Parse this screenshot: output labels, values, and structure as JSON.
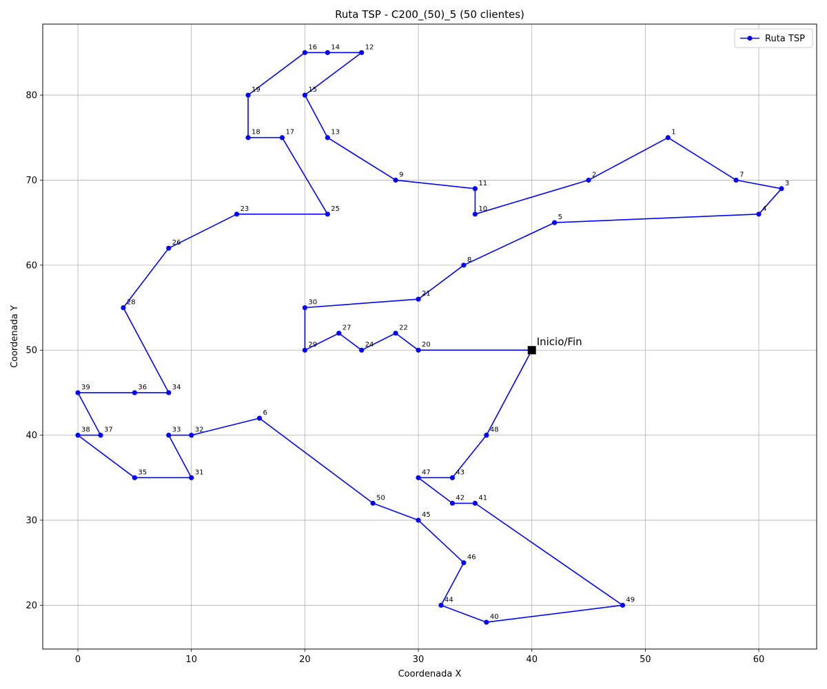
{
  "chart_data": {
    "type": "line",
    "title": "Ruta TSP - C200_(50)_5 (50 clientes)",
    "xlabel": "Coordenada X",
    "ylabel": "Coordenada Y",
    "xlim": [
      -3.1,
      65.1
    ],
    "ylim": [
      14.85,
      88.35
    ],
    "xticks": [
      0,
      10,
      20,
      30,
      40,
      50,
      60
    ],
    "yticks": [
      20,
      30,
      40,
      50,
      60,
      70,
      80
    ],
    "grid": true,
    "legend": {
      "position": "top-right",
      "entries": [
        "Ruta TSP"
      ]
    },
    "series": [
      {
        "name": "Ruta TSP",
        "color": "#0000ff",
        "marker": "circle",
        "route": [
          0,
          20,
          22,
          24,
          27,
          29,
          30,
          21,
          8,
          5,
          4,
          3,
          7,
          1,
          2,
          10,
          11,
          9,
          13,
          15,
          12,
          14,
          16,
          19,
          18,
          17,
          25,
          23,
          26,
          28,
          34,
          36,
          39,
          37,
          38,
          35,
          31,
          33,
          32,
          6,
          50,
          45,
          46,
          44,
          40,
          49,
          41,
          42,
          47,
          43,
          48,
          0
        ]
      }
    ],
    "depot": {
      "id": 0,
      "x": 40,
      "y": 50,
      "label": "Inicio/Fin",
      "color": "#000000",
      "marker": "square"
    },
    "points": [
      {
        "id": 1,
        "x": 52,
        "y": 75
      },
      {
        "id": 2,
        "x": 45,
        "y": 70
      },
      {
        "id": 3,
        "x": 62,
        "y": 69
      },
      {
        "id": 4,
        "x": 60,
        "y": 66
      },
      {
        "id": 5,
        "x": 42,
        "y": 65
      },
      {
        "id": 6,
        "x": 16,
        "y": 42
      },
      {
        "id": 7,
        "x": 58,
        "y": 70
      },
      {
        "id": 8,
        "x": 34,
        "y": 60
      },
      {
        "id": 9,
        "x": 28,
        "y": 70
      },
      {
        "id": 10,
        "x": 35,
        "y": 66
      },
      {
        "id": 11,
        "x": 35,
        "y": 69
      },
      {
        "id": 12,
        "x": 25,
        "y": 85
      },
      {
        "id": 13,
        "x": 22,
        "y": 75
      },
      {
        "id": 14,
        "x": 22,
        "y": 85
      },
      {
        "id": 15,
        "x": 20,
        "y": 80
      },
      {
        "id": 16,
        "x": 20,
        "y": 85
      },
      {
        "id": 17,
        "x": 18,
        "y": 75
      },
      {
        "id": 18,
        "x": 15,
        "y": 75
      },
      {
        "id": 19,
        "x": 15,
        "y": 80
      },
      {
        "id": 20,
        "x": 30,
        "y": 50
      },
      {
        "id": 21,
        "x": 30,
        "y": 56
      },
      {
        "id": 22,
        "x": 28,
        "y": 52
      },
      {
        "id": 23,
        "x": 14,
        "y": 66
      },
      {
        "id": 24,
        "x": 25,
        "y": 50
      },
      {
        "id": 25,
        "x": 22,
        "y": 66
      },
      {
        "id": 26,
        "x": 8,
        "y": 62
      },
      {
        "id": 27,
        "x": 23,
        "y": 52
      },
      {
        "id": 28,
        "x": 4,
        "y": 55
      },
      {
        "id": 29,
        "x": 20,
        "y": 50
      },
      {
        "id": 30,
        "x": 20,
        "y": 55
      },
      {
        "id": 31,
        "x": 10,
        "y": 35
      },
      {
        "id": 32,
        "x": 10,
        "y": 40
      },
      {
        "id": 33,
        "x": 8,
        "y": 40
      },
      {
        "id": 34,
        "x": 8,
        "y": 45
      },
      {
        "id": 35,
        "x": 5,
        "y": 35
      },
      {
        "id": 36,
        "x": 5,
        "y": 45
      },
      {
        "id": 37,
        "x": 2,
        "y": 40
      },
      {
        "id": 38,
        "x": 0,
        "y": 40
      },
      {
        "id": 39,
        "x": 0,
        "y": 45
      },
      {
        "id": 40,
        "x": 36,
        "y": 18
      },
      {
        "id": 41,
        "x": 35,
        "y": 32
      },
      {
        "id": 42,
        "x": 33,
        "y": 32
      },
      {
        "id": 43,
        "x": 33,
        "y": 35
      },
      {
        "id": 44,
        "x": 32,
        "y": 20
      },
      {
        "id": 45,
        "x": 30,
        "y": 30
      },
      {
        "id": 46,
        "x": 34,
        "y": 25
      },
      {
        "id": 47,
        "x": 30,
        "y": 35
      },
      {
        "id": 48,
        "x": 36,
        "y": 40
      },
      {
        "id": 49,
        "x": 48,
        "y": 20
      },
      {
        "id": 50,
        "x": 26,
        "y": 32
      }
    ]
  }
}
